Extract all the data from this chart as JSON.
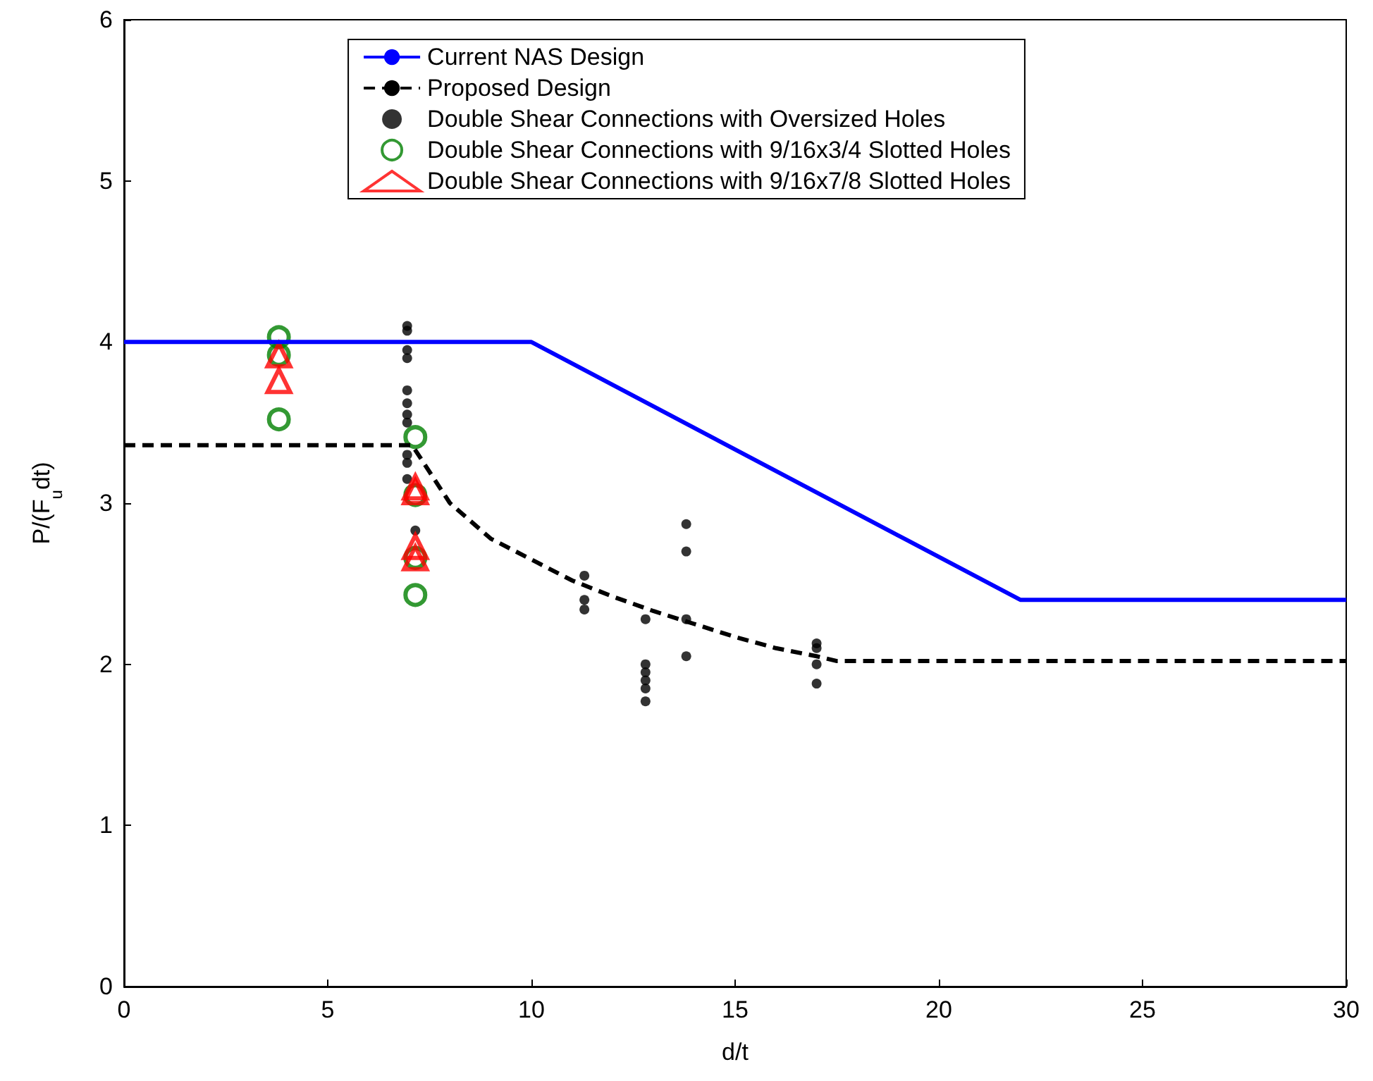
{
  "chart_data": {
    "type": "line",
    "xlabel": "d/t",
    "ylabel": "P/(F$_{u}$dt)",
    "xlim": [
      0,
      30
    ],
    "ylim": [
      0,
      6
    ],
    "xticks": [
      0,
      5,
      10,
      15,
      20,
      25,
      30
    ],
    "yticks": [
      0,
      1,
      2,
      3,
      4,
      5,
      6
    ],
    "grid": false,
    "legend": "top",
    "series": [
      {
        "name": "Current NAS Design",
        "color": "#0000ff",
        "line_style": "solid",
        "marker": "none",
        "x": [
          0,
          10,
          22,
          30
        ],
        "values": [
          4,
          4,
          2.4,
          2.4
        ]
      },
      {
        "name": "Proposed Design",
        "color": "#000000",
        "line_style": "dashed",
        "marker": "none",
        "x": [
          0,
          7.07,
          8,
          9,
          10,
          11,
          12,
          13,
          14,
          15,
          16,
          17,
          17.5,
          30
        ],
        "values": [
          3.36,
          3.36,
          3.0,
          2.78,
          2.65,
          2.52,
          2.42,
          2.33,
          2.25,
          2.17,
          2.1,
          2.05,
          2.02,
          2.02
        ]
      },
      {
        "name": "Double Shear Connections with Oversized Holes",
        "type": "scatter",
        "color": "#000000",
        "marker": "circle",
        "x": [
          6.95,
          6.95,
          6.95,
          6.95,
          6.95,
          6.95,
          6.95,
          6.95,
          6.95,
          6.95,
          6.95,
          7.15,
          11.3,
          11.3,
          11.3,
          12.8,
          12.8,
          12.8,
          12.8,
          12.8,
          12.8,
          13.8,
          13.8,
          13.8,
          13.8,
          17,
          17,
          17,
          17
        ],
        "values": [
          4.1,
          4.07,
          3.95,
          3.9,
          3.7,
          3.62,
          3.55,
          3.5,
          3.3,
          3.25,
          3.15,
          2.83,
          2.55,
          2.4,
          2.34,
          2.28,
          2.0,
          1.95,
          1.9,
          1.85,
          1.77,
          2.87,
          2.7,
          2.28,
          2.05,
          2.13,
          2.1,
          2.0,
          1.88
        ]
      },
      {
        "name": "Double Shear Connections with 9/16x3/4 Slotted Holes",
        "type": "scatter",
        "color": "#008000",
        "marker": "circle",
        "x": [
          3.8,
          3.8,
          3.8,
          7.15,
          7.15,
          7.15,
          7.15
        ],
        "values": [
          4.03,
          3.92,
          3.52,
          3.41,
          3.05,
          2.66,
          2.43
        ]
      },
      {
        "name": "Double Shear Connections with 9/16x7/8 Slotted Holes",
        "type": "scatter",
        "color": "#ff0000",
        "marker": "triangle",
        "x": [
          3.8,
          3.8,
          7.15,
          7.15,
          7.15,
          7.15
        ],
        "values": [
          3.92,
          3.76,
          3.1,
          3.07,
          2.73,
          2.66
        ]
      }
    ]
  }
}
